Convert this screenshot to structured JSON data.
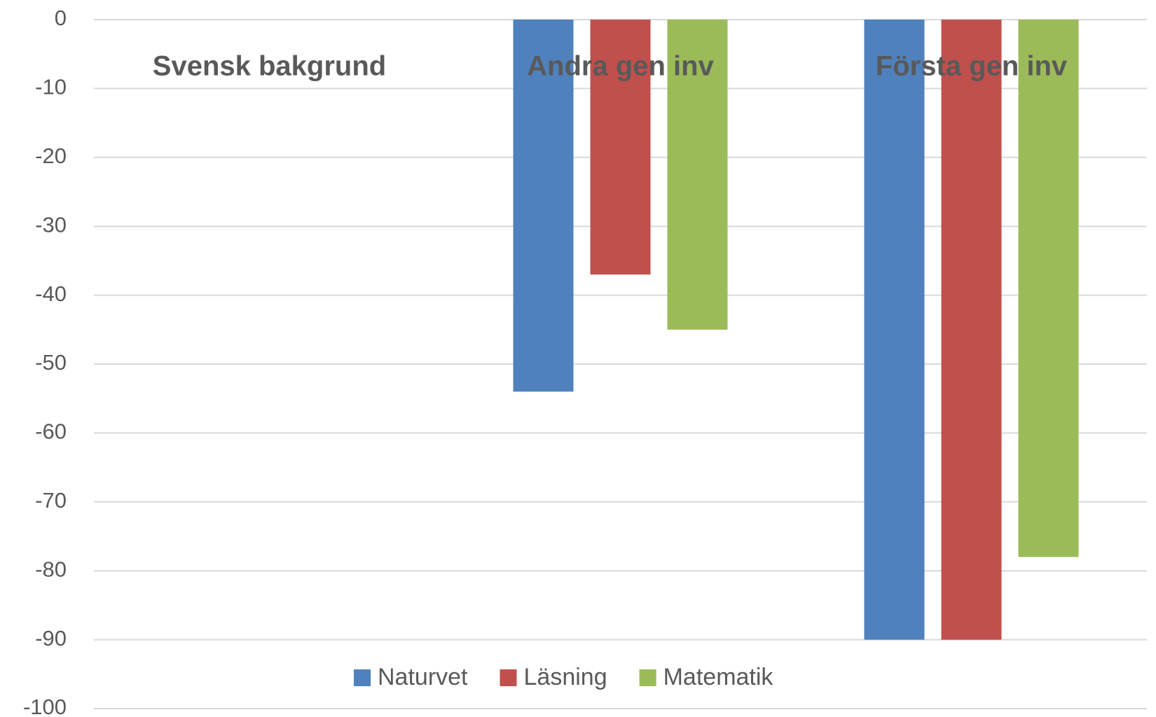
{
  "chart_data": {
    "type": "bar",
    "categories": [
      "Svensk bakgrund",
      "Andra gen inv",
      "Första gen inv"
    ],
    "series": [
      {
        "name": "Naturvet",
        "color": "#4f81bd",
        "values": [
          0,
          -54,
          -90
        ]
      },
      {
        "name": "Läsning",
        "color": "#c0504d",
        "values": [
          0,
          -37,
          -90
        ]
      },
      {
        "name": "Matematik",
        "color": "#9bbb59",
        "values": [
          0,
          -45,
          -78
        ]
      }
    ],
    "ylim": [
      -100,
      0
    ],
    "yticks": [
      0,
      -10,
      -20,
      -30,
      -40,
      -50,
      -60,
      -70,
      -80,
      -90,
      -100
    ],
    "grid": true,
    "legend": "bottom"
  }
}
